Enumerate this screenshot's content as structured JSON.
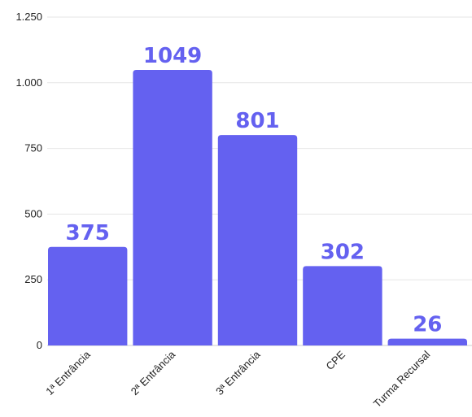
{
  "chart_data": {
    "type": "bar",
    "categories": [
      "1ª Entrância",
      "2ª Entrância",
      "3ª Entrância",
      "CPE",
      "Turma Recursal"
    ],
    "values": [
      375,
      1049,
      801,
      302,
      26
    ],
    "data_labels": [
      "375",
      "1049",
      "801",
      "302",
      "26"
    ],
    "y_ticks": [
      {
        "value": 0,
        "label": "0"
      },
      {
        "value": 250,
        "label": "250"
      },
      {
        "value": 500,
        "label": "500"
      },
      {
        "value": 750,
        "label": "750"
      },
      {
        "value": 1000,
        "label": "1.000"
      },
      {
        "value": 1250,
        "label": "1.250"
      }
    ],
    "ylim": [
      0,
      1250
    ],
    "title": "",
    "xlabel": "",
    "ylabel": "",
    "grid": true,
    "bar_color": "#6461f0",
    "label_color": "#6461f0"
  }
}
